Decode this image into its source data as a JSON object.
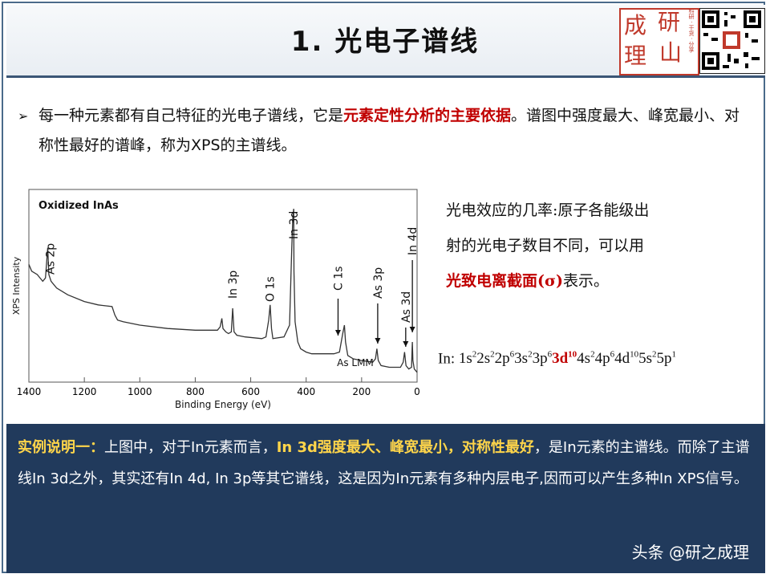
{
  "slide": {
    "title": "1. 光电子谱线",
    "logo_chars": [
      "成",
      "研",
      "理",
      "山"
    ],
    "logo_side_text": "科研 · 干货 · 分享"
  },
  "bullet": {
    "part1": "每一种元素都有自己特征的光电子谱线，它是",
    "highlight": "元素定性分析的主要依据",
    "part2": "。谱图中强度最大、峰宽最小、对称性最好的谱峰，称为XPS的主谱线。"
  },
  "side": {
    "line1": "光电效应的几率:原子各能级出",
    "line2": "射的光电子数目不同，可以用",
    "highlight": "光致电离截面(σ)",
    "line3_tail": "表示。"
  },
  "config": {
    "prefix": "In: ",
    "terms": [
      {
        "base": "1s",
        "sup": "2"
      },
      {
        "base": "2s",
        "sup": "2"
      },
      {
        "base": "2p",
        "sup": "6"
      },
      {
        "base": "3s",
        "sup": "2"
      },
      {
        "base": "3p",
        "sup": "6"
      },
      {
        "base": "3d",
        "sup": "10",
        "highlight": true
      },
      {
        "base": "4s",
        "sup": "2"
      },
      {
        "base": "4p",
        "sup": "6"
      },
      {
        "base": "4d",
        "sup": "10"
      },
      {
        "base": "5s",
        "sup": "2"
      },
      {
        "base": "5p",
        "sup": "1"
      }
    ]
  },
  "note": {
    "lead": "实例说明一：",
    "text1": "上图中，对于In元素而言，",
    "highlight": "In 3d强度最大、峰宽最小，对称性最好",
    "text2": "，是In元素的主谱线。而除了主谱线In 3d之外，其实还有In 4d, In 3p等其它谱线，这是因为In元素有多种内层电子,因而可以产生多种In XPS信号。"
  },
  "watermark": "头条 @研之成理",
  "chart_data": {
    "type": "line",
    "title": "Oxidized InAs",
    "xlabel": "Binding Energy (eV)",
    "ylabel": "XPS Intensity",
    "xlim": [
      1400,
      0
    ],
    "x_ticks": [
      1400,
      1200,
      1000,
      800,
      600,
      400,
      200,
      0
    ],
    "x": [
      1400,
      1390,
      1370,
      1350,
      1340,
      1332,
      1328,
      1320,
      1300,
      1260,
      1200,
      1150,
      1100,
      1090,
      1080,
      1060,
      1000,
      900,
      800,
      720,
      710,
      704,
      700,
      690,
      680,
      670,
      665,
      660,
      650,
      620,
      560,
      545,
      535,
      530,
      525,
      520,
      480,
      460,
      452,
      448,
      445,
      444,
      440,
      430,
      420,
      400,
      380,
      350,
      300,
      280,
      268,
      262,
      258,
      250,
      230,
      200,
      160,
      150,
      145,
      140,
      130,
      100,
      60,
      50,
      45,
      42,
      40,
      30,
      20,
      18,
      17,
      15,
      10,
      5,
      0
    ],
    "y": [
      0.66,
      0.62,
      0.6,
      0.56,
      0.58,
      0.76,
      0.6,
      0.56,
      0.52,
      0.48,
      0.44,
      0.42,
      0.41,
      0.36,
      0.33,
      0.32,
      0.3,
      0.28,
      0.27,
      0.27,
      0.29,
      0.34,
      0.28,
      0.26,
      0.25,
      0.26,
      0.4,
      0.26,
      0.24,
      0.23,
      0.22,
      0.23,
      0.33,
      0.42,
      0.28,
      0.22,
      0.23,
      0.3,
      0.75,
      0.94,
      0.99,
      0.62,
      0.32,
      0.2,
      0.16,
      0.14,
      0.13,
      0.13,
      0.13,
      0.14,
      0.25,
      0.3,
      0.2,
      0.12,
      0.1,
      0.09,
      0.08,
      0.1,
      0.16,
      0.09,
      0.06,
      0.05,
      0.05,
      0.08,
      0.14,
      0.09,
      0.06,
      0.04,
      0.05,
      0.16,
      0.2,
      0.09,
      0.04,
      0.03,
      0.02
    ],
    "annotations": [
      {
        "label": "As 2p",
        "x": 1323
      },
      {
        "label": "In 3p",
        "x": 665
      },
      {
        "label": "O 1s",
        "x": 531
      },
      {
        "label": "In 3d",
        "x": 445
      },
      {
        "label": "C 1s",
        "x": 285
      },
      {
        "label": "As 3p",
        "x": 142
      },
      {
        "label": "As 3d",
        "x": 41
      },
      {
        "label": "In 4d",
        "x": 17
      },
      {
        "label": "As LMM",
        "x": 260
      }
    ],
    "grid": false,
    "legend": "none"
  }
}
